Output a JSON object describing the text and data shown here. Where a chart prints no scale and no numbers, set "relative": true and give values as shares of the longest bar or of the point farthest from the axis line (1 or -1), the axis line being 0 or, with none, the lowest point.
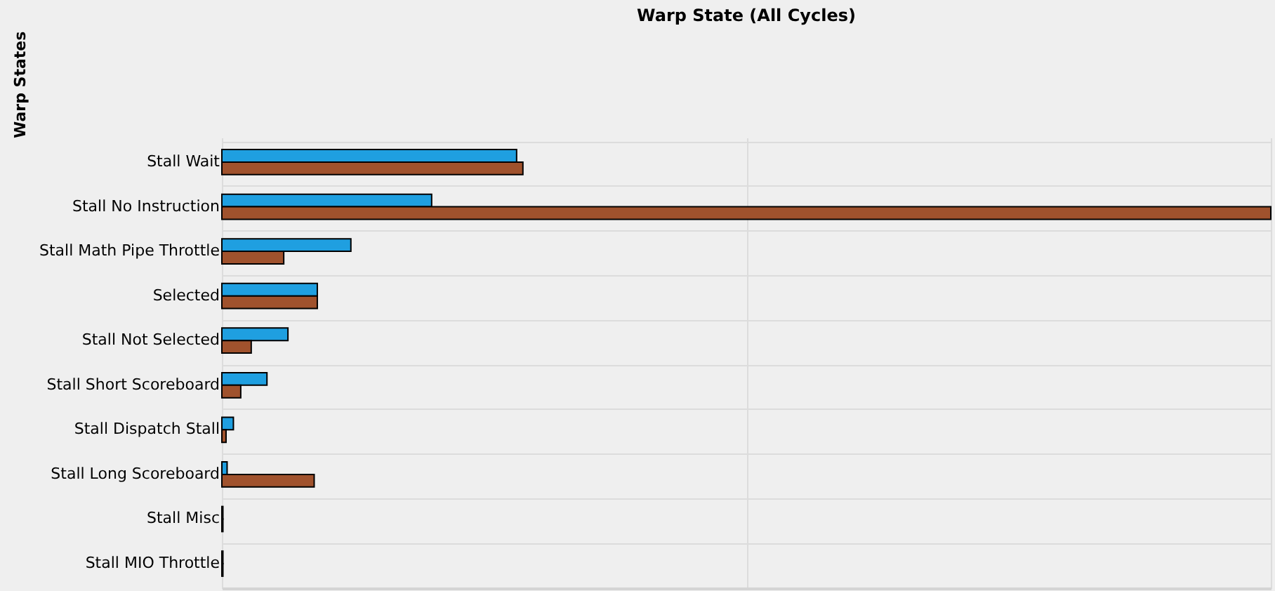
{
  "chart_data": {
    "type": "bar",
    "title": "Warp State (All Cycles)",
    "ylabel": "Warp States",
    "orientation": "horizontal",
    "relative": true,
    "grid": true,
    "legend": false,
    "categories": [
      "Stall Wait",
      "Stall No Instruction",
      "Stall Math Pipe Throttle",
      "Selected",
      "Stall Not Selected",
      "Stall Short Scoreboard",
      "Stall Dispatch Stall",
      "Stall Long Scoreboard",
      "Stall Misc",
      "Stall MIO Throttle"
    ],
    "series": [
      {
        "color": "#1f9fe0",
        "values": [
          0.281,
          0.2,
          0.123,
          0.091,
          0.063,
          0.043,
          0.011,
          0.005,
          0.001,
          0.001
        ]
      },
      {
        "color": "#a0522d",
        "values": [
          0.287,
          1,
          0.059,
          0.091,
          0.028,
          0.018,
          0.004,
          0.088,
          0.001,
          0.001
        ]
      }
    ]
  }
}
